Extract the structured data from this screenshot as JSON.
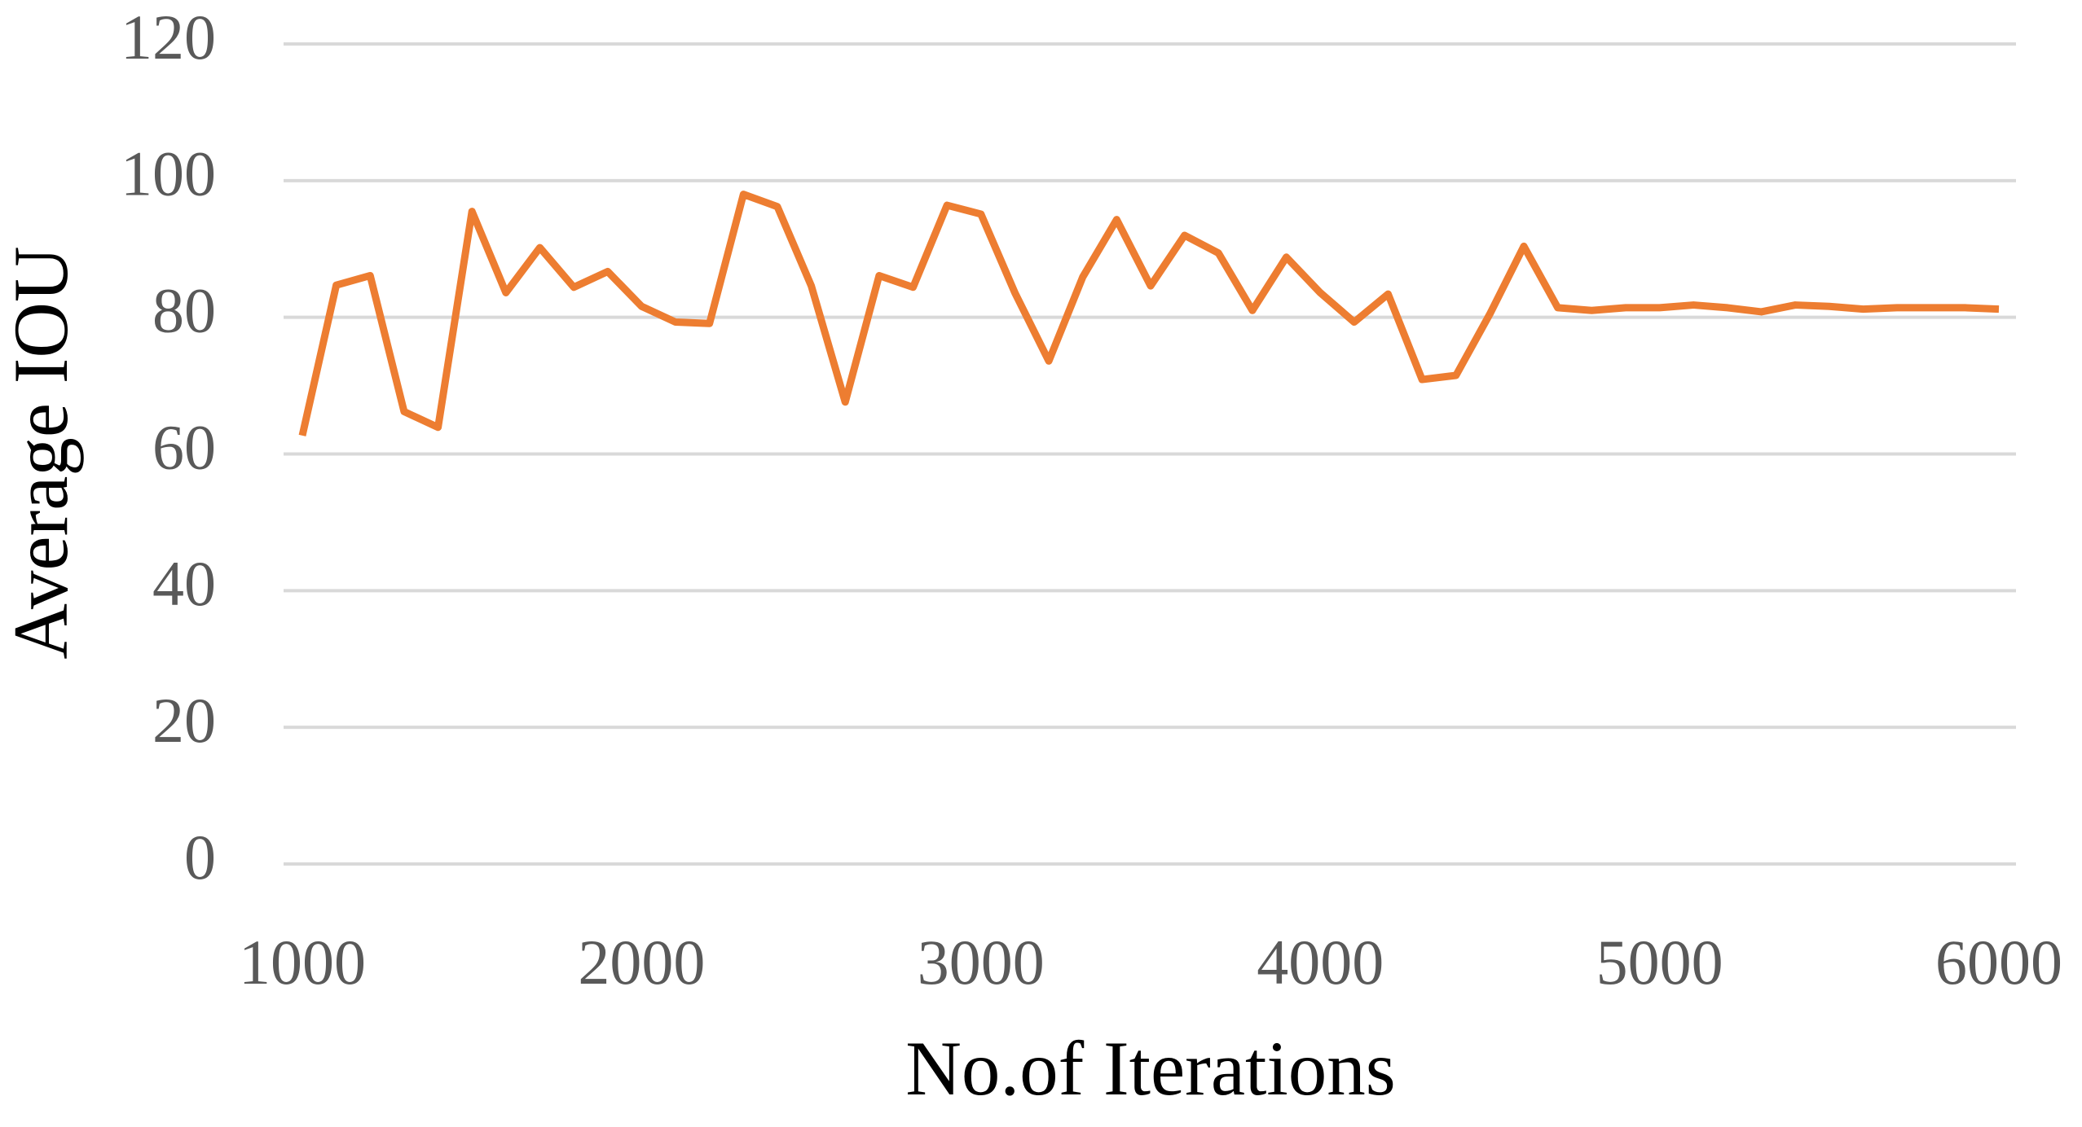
{
  "chart_data": {
    "type": "line",
    "x_label": "No.of Iterations",
    "y_label": "Average IOU",
    "x": [
      1000,
      1100,
      1200,
      1300,
      1400,
      1500,
      1600,
      1700,
      1800,
      1900,
      2000,
      2100,
      2200,
      2300,
      2400,
      2500,
      2600,
      2700,
      2800,
      2900,
      3000,
      3100,
      3200,
      3300,
      3400,
      3500,
      3600,
      3700,
      3800,
      3900,
      4000,
      4100,
      4200,
      4300,
      4400,
      4500,
      4600,
      4700,
      4800,
      4900,
      5000,
      5100,
      5200,
      5300,
      5400,
      5500,
      5600,
      5700,
      5800,
      5900,
      6000
    ],
    "series": [
      {
        "color": "#ed7d31",
        "values": [
          62.7,
          84.7,
          86.1,
          66.2,
          63.9,
          95.5,
          83.6,
          90.2,
          84.4,
          86.7,
          81.6,
          79.3,
          79.1,
          98,
          96.2,
          84.6,
          67.6,
          86.1,
          84.4,
          96.4,
          95.1,
          83.6,
          73.6,
          85.9,
          94.3,
          84.6,
          92,
          89.4,
          81,
          88.8,
          83.6,
          79.3,
          83.4,
          70.9,
          71.5,
          80.5,
          90.4,
          81.4,
          81,
          81.4,
          81.4,
          81.8,
          81.4,
          80.8,
          81.8,
          81.6,
          81.2,
          81.4,
          81.4,
          81.4,
          81.2
        ]
      }
    ],
    "xlim": [
      1000,
      6000
    ],
    "xticks": [
      1000,
      2000,
      3000,
      4000,
      5000,
      6000
    ],
    "ylim": [
      0,
      120
    ],
    "yticks": [
      0,
      20,
      40,
      60,
      80,
      100,
      120
    ],
    "grid": true
  }
}
